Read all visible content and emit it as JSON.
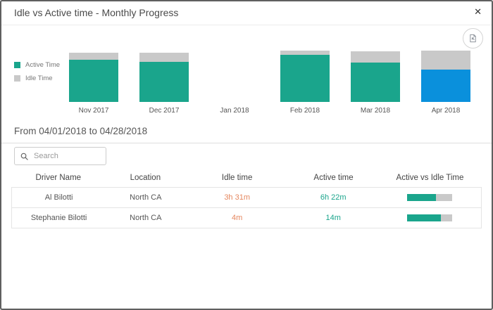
{
  "modal": {
    "title": "Idle vs Active time - Monthly Progress",
    "close_glyph": "✕"
  },
  "chart_data": {
    "type": "bar",
    "stacked": true,
    "categories": [
      "Nov 2017",
      "Dec 2017",
      "Jan 2018",
      "Feb 2018",
      "Mar 2018",
      "Apr 2018"
    ],
    "series": [
      {
        "name": "Active Time",
        "values": [
          82,
          78,
          0,
          92,
          77,
          63
        ]
      },
      {
        "name": "Idle Time",
        "values": [
          14,
          18,
          0,
          8,
          22,
          37
        ]
      }
    ],
    "highlighted_category": "Apr 2018",
    "legend": [
      "Active Time",
      "Idle Time"
    ],
    "legend_position": "left",
    "ylim": [
      0,
      100
    ],
    "note": "values are relative stacked-bar heights in % of plot; no y-axis shown; Apr 2018 active segment drawn in highlight blue",
    "colors": {
      "active": "#1aa58c",
      "idle": "#c9c9c9",
      "highlight": "#0a90dc"
    }
  },
  "filters": {
    "date_range": "From 04/01/2018 to 04/28/2018",
    "search_placeholder": "Search",
    "search_value": ""
  },
  "table": {
    "columns": [
      "Driver Name",
      "Location",
      "Idle time",
      "Active time",
      "Active vs Idle Time"
    ],
    "rows": [
      {
        "driver": "Al Bilotti",
        "location": "North CA",
        "idle": "3h 31m",
        "active": "6h 22m",
        "active_ratio": 0.65
      },
      {
        "driver": "Stephanie Bilotti",
        "location": "North CA",
        "idle": "4m",
        "active": "14m",
        "active_ratio": 0.75
      }
    ]
  },
  "colors": {
    "active_teal": "#1aa58c",
    "idle_gray": "#c9c9c9",
    "highlight_blue": "#0a90dc",
    "idle_text_orange": "#e5875f"
  }
}
